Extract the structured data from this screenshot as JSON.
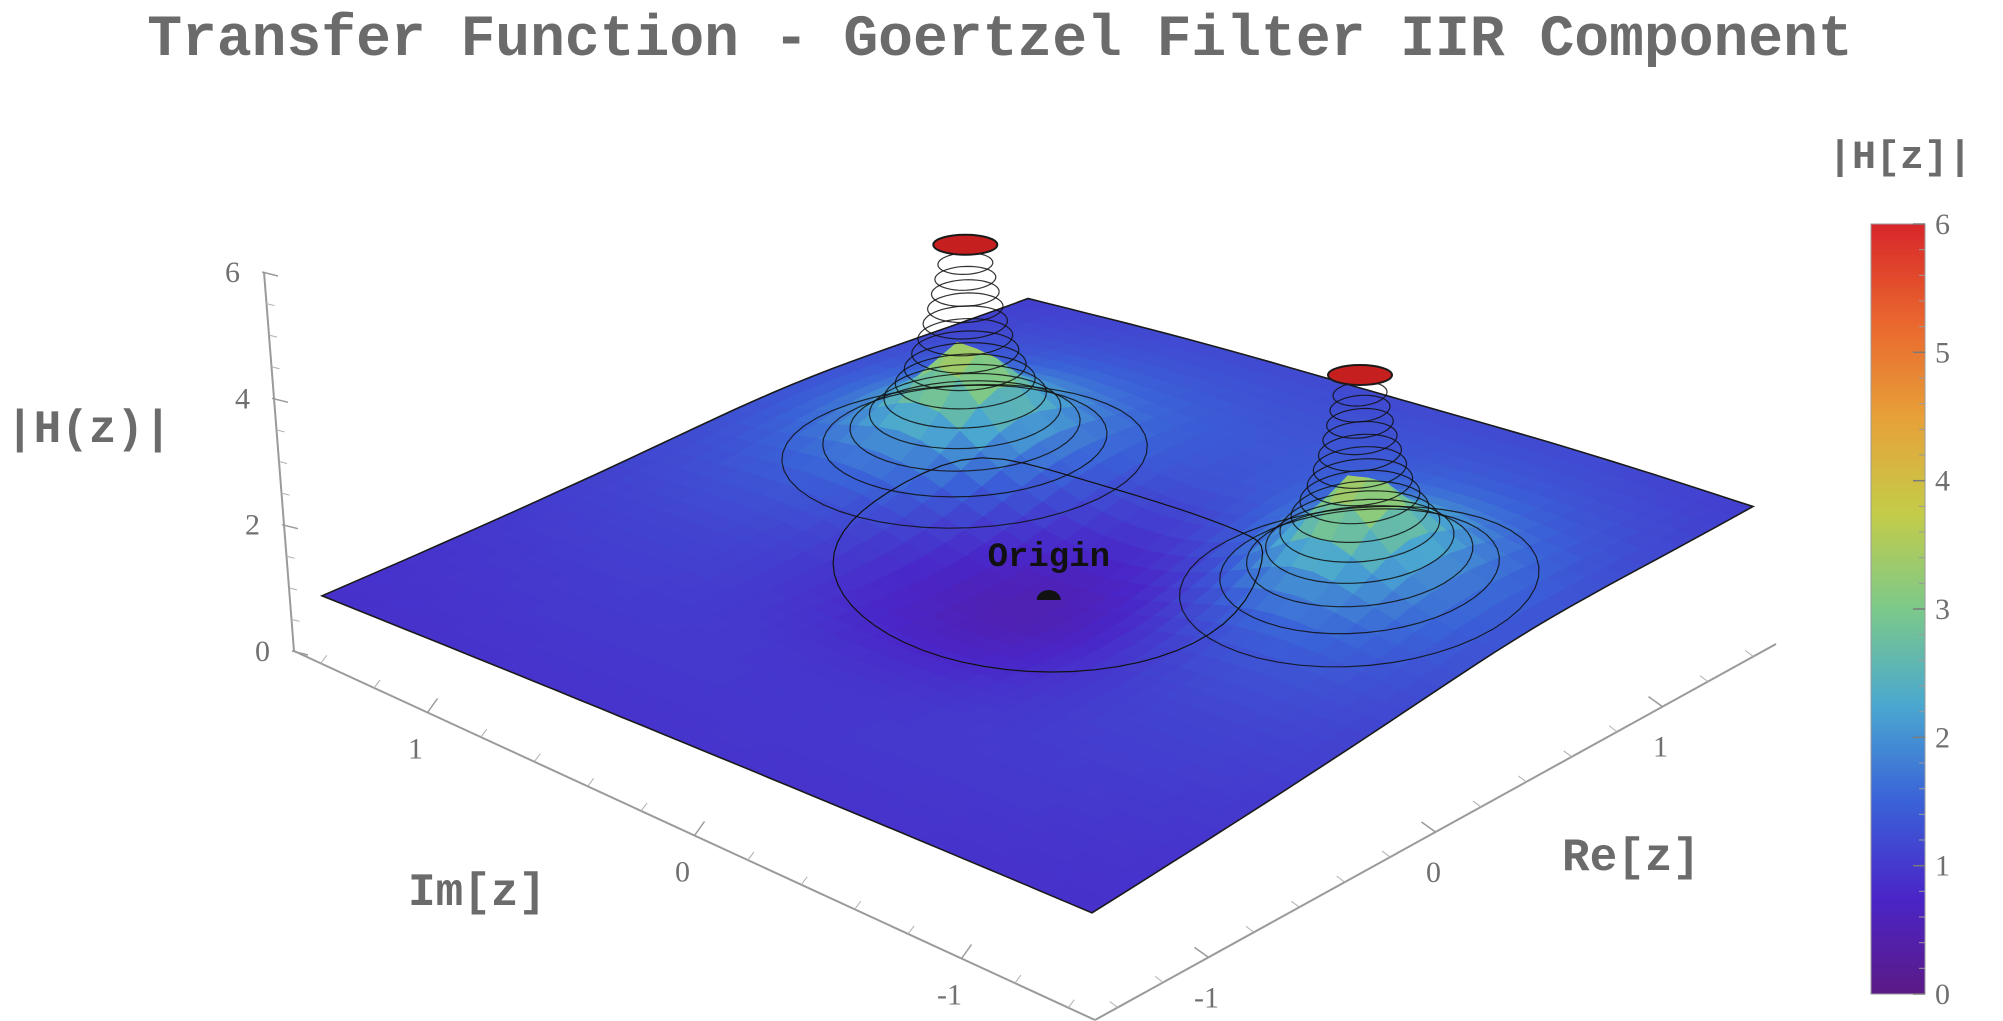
{
  "chart_data": {
    "type": "surface3d",
    "title": "Transfer Function - Goertzel Filter IIR Component",
    "axes": {
      "x": {
        "label": "Re[z]",
        "ticks": [
          -1,
          0,
          1
        ],
        "tick_labels": [
          "-1",
          "0",
          "1"
        ]
      },
      "y": {
        "label": "Im[z]",
        "ticks": [
          1,
          0,
          -1
        ],
        "tick_labels": [
          "1",
          "0",
          "-1"
        ]
      },
      "z": {
        "label": "|H(z)|",
        "range": [
          0,
          6
        ],
        "ticks": [
          0,
          2,
          4,
          6
        ],
        "tick_labels": [
          "0",
          "2",
          "4",
          "6"
        ]
      }
    },
    "colorbar": {
      "title": "|H[z]|",
      "range": [
        0,
        6
      ],
      "ticks": [
        0,
        1,
        2,
        3,
        4,
        5,
        6
      ],
      "tick_labels": [
        "0",
        "1",
        "2",
        "3",
        "4",
        "5",
        "6"
      ],
      "colormap": [
        "#5b1a86",
        "#4a25c8",
        "#3a62d8",
        "#4aa8d0",
        "#7cc98a",
        "#c4cc48",
        "#e8a038",
        "#e9652e",
        "#d8262a"
      ]
    },
    "surface": {
      "clipped_at": 6,
      "poles": [
        {
          "re": 0.5,
          "im": 0.8,
          "magnitude_clipped": 6
        },
        {
          "re": 0.5,
          "im": -0.8,
          "magnitude_clipped": 6
        }
      ],
      "contour_lines": true
    },
    "annotations": [
      {
        "text": "Origin",
        "re": 0,
        "im": 0,
        "z": 0.6
      }
    ]
  }
}
